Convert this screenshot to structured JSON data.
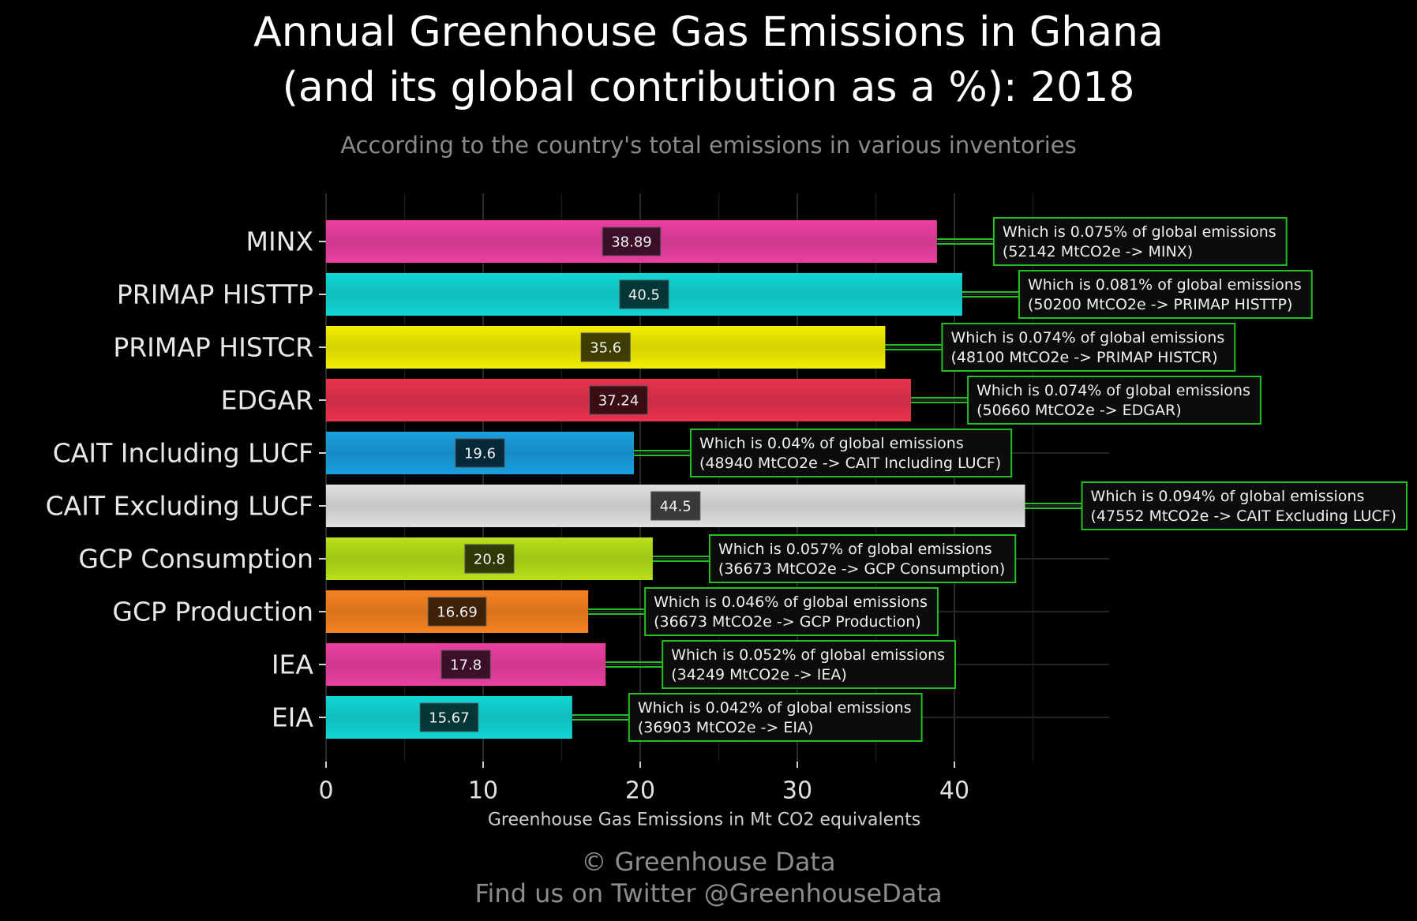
{
  "title_line1": "Annual Greenhouse Gas Emissions in Ghana",
  "title_line2": "(and its global contribution as a %): 2018",
  "subtitle": "According to the country's total emissions in various inventories",
  "footer_line1": "© Greenhouse Data",
  "footer_line2": "Find us on Twitter @GreenhouseData",
  "chart_data": {
    "type": "bar",
    "orientation": "horizontal",
    "xlabel": "Greenhouse Gas Emissions in Mt CO2 equivalents",
    "ylabel": "",
    "xlim": [
      0,
      50
    ],
    "xticks": [
      0,
      10,
      20,
      30,
      40
    ],
    "grid": true,
    "categories": [
      "MINX",
      "PRIMAP HISTTP",
      "PRIMAP HISTCR",
      "EDGAR",
      "CAIT Including LUCF",
      "CAIT Excluding LUCF",
      "GCP Consumption",
      "GCP Production",
      "IEA",
      "EIA"
    ],
    "values": [
      38.89,
      40.5,
      35.6,
      37.24,
      19.6,
      44.5,
      20.8,
      16.69,
      17.8,
      15.67
    ],
    "value_labels": [
      "38.89",
      "40.5",
      "35.6",
      "37.24",
      "19.6",
      "44.5",
      "20.8",
      "16.69",
      "17.8",
      "15.67"
    ],
    "colors": [
      "#ea3fa0",
      "#12d6d6",
      "#f4ee00",
      "#e8334f",
      "#1a9fe0",
      "#e0e0e0",
      "#b8e01a",
      "#f78221",
      "#ea3fa0",
      "#12d6d6"
    ],
    "annotations": [
      {
        "line1": "Which is 0.075% of global emissions",
        "line2": "(52142 MtCO2e -> MINX)"
      },
      {
        "line1": "Which is 0.081% of global emissions",
        "line2": "(50200 MtCO2e -> PRIMAP HISTTP)"
      },
      {
        "line1": "Which is 0.074% of global emissions",
        "line2": "(48100 MtCO2e -> PRIMAP HISTCR)"
      },
      {
        "line1": "Which is 0.074% of global emissions",
        "line2": "(50660 MtCO2e -> EDGAR)"
      },
      {
        "line1": "Which is 0.04% of global emissions",
        "line2": "(48940 MtCO2e -> CAIT Including LUCF)"
      },
      {
        "line1": "Which is 0.094% of global emissions",
        "line2": "(47552 MtCO2e -> CAIT Excluding LUCF)"
      },
      {
        "line1": "Which is 0.057% of global emissions",
        "line2": "(36673 MtCO2e -> GCP Consumption)"
      },
      {
        "line1": "Which is 0.046% of global emissions",
        "line2": "(36673 MtCO2e -> GCP Production)"
      },
      {
        "line1": "Which is 0.052% of global emissions",
        "line2": "(34249 MtCO2e -> IEA)"
      },
      {
        "line1": "Which is 0.042% of global emissions",
        "line2": "(36903 MtCO2e -> EIA)"
      }
    ],
    "annotation_border_color": "#22c022"
  }
}
